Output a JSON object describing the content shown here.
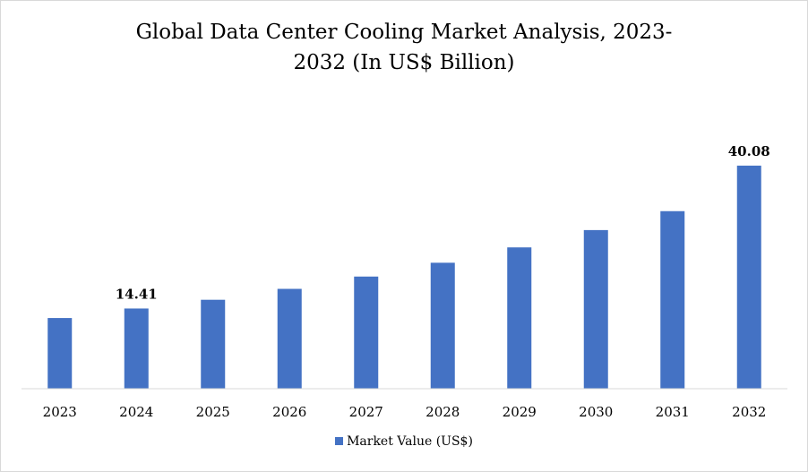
{
  "chart_data": {
    "type": "bar",
    "title_line1": "Global Data Center Cooling Market Analysis, 2023-",
    "title_line2": "2032 (In US$ Billion)",
    "categories": [
      "2023",
      "2024",
      "2025",
      "2026",
      "2027",
      "2028",
      "2029",
      "2030",
      "2031",
      "2032"
    ],
    "series": [
      {
        "name": "Market Value (US$)",
        "values": [
          12.7,
          14.41,
          15.98,
          17.94,
          20.15,
          22.63,
          25.39,
          28.5,
          31.9,
          40.08
        ]
      }
    ],
    "data_labels": {
      "1": "14.41",
      "9": "40.08"
    },
    "ylim": [
      0,
      42
    ],
    "xlabel": "",
    "ylabel": "",
    "grid": false,
    "legend_position": "bottom",
    "bar_color": "#4472c4"
  }
}
